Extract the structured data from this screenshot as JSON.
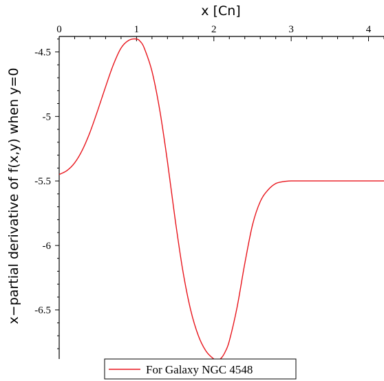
{
  "chart_data": {
    "type": "line",
    "xlabel": "x [Cn]",
    "ylabel": "x−partial derivative of f(x,y) when y=0",
    "x_axis_position": "top",
    "xlim": [
      0,
      4.2
    ],
    "ylim": [
      -6.88,
      -4.38
    ],
    "x_ticks": [
      0,
      1,
      2,
      3,
      4
    ],
    "y_ticks": [
      -4.5,
      -5,
      -5.5,
      -6,
      -6.5
    ],
    "x_tick_labels": [
      "0",
      "1",
      "2",
      "3",
      "4"
    ],
    "y_tick_labels": [
      "-4.5",
      "-5",
      "-5.5",
      "-6",
      "-6.5"
    ],
    "grid": false,
    "legend_position": "bottom",
    "series": [
      {
        "name": "For Galaxy NGC 4548",
        "color": "#e8141b",
        "x": [
          0,
          0.1,
          0.2,
          0.3,
          0.4,
          0.5,
          0.6,
          0.7,
          0.8,
          0.9,
          1.0,
          1.05,
          1.1,
          1.2,
          1.3,
          1.4,
          1.5,
          1.6,
          1.7,
          1.8,
          1.9,
          2.0,
          2.05,
          2.1,
          2.15,
          2.2,
          2.3,
          2.4,
          2.5,
          2.6,
          2.7,
          2.8,
          2.9,
          3.0,
          3.2,
          3.4,
          3.6,
          3.8,
          4.0,
          4.2
        ],
        "y": [
          -5.45,
          -5.42,
          -5.36,
          -5.26,
          -5.12,
          -4.95,
          -4.77,
          -4.6,
          -4.47,
          -4.41,
          -4.4,
          -4.42,
          -4.47,
          -4.65,
          -4.95,
          -5.35,
          -5.8,
          -6.2,
          -6.5,
          -6.7,
          -6.82,
          -6.88,
          -6.89,
          -6.87,
          -6.82,
          -6.74,
          -6.48,
          -6.14,
          -5.84,
          -5.66,
          -5.57,
          -5.52,
          -5.505,
          -5.5,
          -5.5,
          -5.5,
          -5.5,
          -5.5,
          -5.5,
          -5.5
        ]
      }
    ]
  }
}
